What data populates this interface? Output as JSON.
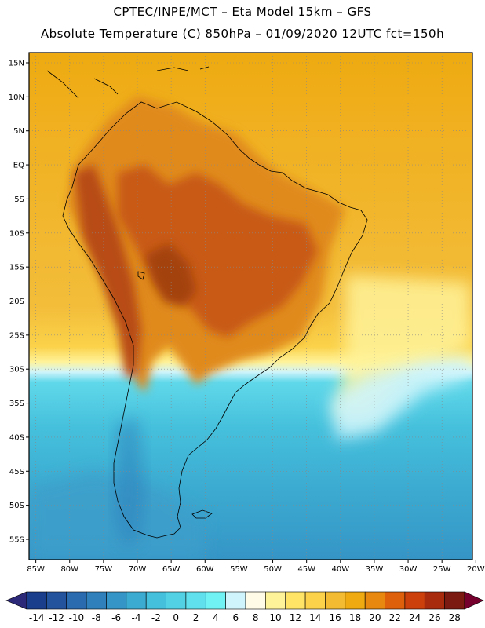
{
  "header": {
    "title_line1": "CPTEC/INPE/MCT –  Eta Model 15km – GFS",
    "title_line2": "Absolute Temperature (C) 850hPa – 01/09/2020 12UTC fct=150h"
  },
  "map": {
    "lat_labels": [
      "15N",
      "10N",
      "5N",
      "EQ",
      "5S",
      "10S",
      "15S",
      "20S",
      "25S",
      "30S",
      "35S",
      "40S",
      "45S",
      "50S",
      "55S"
    ],
    "lat_values": [
      15,
      10,
      5,
      0,
      -5,
      -10,
      -15,
      -20,
      -25,
      -30,
      -35,
      -40,
      -45,
      -50,
      -55
    ],
    "lon_labels": [
      "85W",
      "80W",
      "75W",
      "70W",
      "65W",
      "60W",
      "55W",
      "50W",
      "45W",
      "40W",
      "35W",
      "30W",
      "25W",
      "20W"
    ],
    "lon_values": [
      -85,
      -80,
      -75,
      -70,
      -65,
      -60,
      -55,
      -50,
      -45,
      -40,
      -35,
      -30,
      -25,
      -20
    ],
    "lon_range": [
      -86,
      -20.5
    ],
    "lat_range": [
      -58,
      16.5
    ]
  },
  "colorbar": {
    "labels": [
      "-14",
      "-12",
      "-10",
      "-8",
      "-6",
      "-4",
      "-2",
      "0",
      "2",
      "4",
      "6",
      "8",
      "10",
      "12",
      "14",
      "16",
      "18",
      "20",
      "22",
      "24",
      "26",
      "28"
    ],
    "colors": [
      "#1a3d8c",
      "#24539e",
      "#2a6aae",
      "#2f80bb",
      "#3595c6",
      "#3cabd1",
      "#45c0dc",
      "#52d0e4",
      "#5fe0ec",
      "#70f2f4",
      "#cff4fb",
      "#fffbe6",
      "#fff39a",
      "#ffe466",
      "#fbd24a",
      "#f3bb32",
      "#eeaa10",
      "#e8880f",
      "#df600b",
      "#cc400c",
      "#a82b0e",
      "#7a1a10"
    ],
    "under_color": "#2c2a78",
    "over_color": "#75002e"
  }
}
